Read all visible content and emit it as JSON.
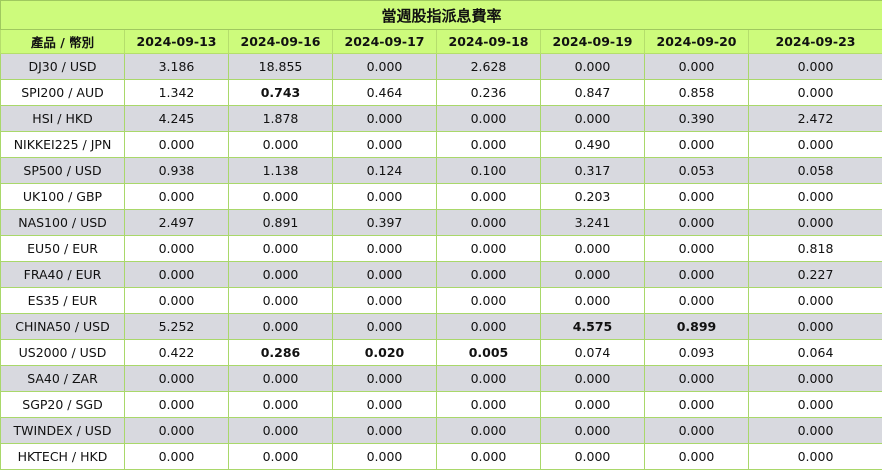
{
  "title": "當週股指派息費率",
  "header": {
    "product_label": "產品 / 幣別",
    "dates": [
      "2024-09-13",
      "2024-09-16",
      "2024-09-17",
      "2024-09-18",
      "2024-09-19",
      "2024-09-20",
      "2024-09-23"
    ]
  },
  "rows": [
    {
      "product": "DJ30 / USD",
      "values": [
        "3.186",
        "18.855",
        "0.000",
        "2.628",
        "0.000",
        "0.000",
        "0.000"
      ],
      "bold": []
    },
    {
      "product": "SPI200 / AUD",
      "values": [
        "1.342",
        "0.743",
        "0.464",
        "0.236",
        "0.847",
        "0.858",
        "0.000"
      ],
      "bold": [
        1
      ]
    },
    {
      "product": "HSI / HKD",
      "values": [
        "4.245",
        "1.878",
        "0.000",
        "0.000",
        "0.000",
        "0.390",
        "2.472"
      ],
      "bold": []
    },
    {
      "product": "NIKKEI225 / JPN",
      "values": [
        "0.000",
        "0.000",
        "0.000",
        "0.000",
        "0.490",
        "0.000",
        "0.000"
      ],
      "bold": []
    },
    {
      "product": "SP500 / USD",
      "values": [
        "0.938",
        "1.138",
        "0.124",
        "0.100",
        "0.317",
        "0.053",
        "0.058"
      ],
      "bold": []
    },
    {
      "product": "UK100 / GBP",
      "values": [
        "0.000",
        "0.000",
        "0.000",
        "0.000",
        "0.203",
        "0.000",
        "0.000"
      ],
      "bold": []
    },
    {
      "product": "NAS100 / USD",
      "values": [
        "2.497",
        "0.891",
        "0.397",
        "0.000",
        "3.241",
        "0.000",
        "0.000"
      ],
      "bold": []
    },
    {
      "product": "EU50 / EUR",
      "values": [
        "0.000",
        "0.000",
        "0.000",
        "0.000",
        "0.000",
        "0.000",
        "0.818"
      ],
      "bold": []
    },
    {
      "product": "FRA40 / EUR",
      "values": [
        "0.000",
        "0.000",
        "0.000",
        "0.000",
        "0.000",
        "0.000",
        "0.227"
      ],
      "bold": []
    },
    {
      "product": "ES35 / EUR",
      "values": [
        "0.000",
        "0.000",
        "0.000",
        "0.000",
        "0.000",
        "0.000",
        "0.000"
      ],
      "bold": []
    },
    {
      "product": "CHINA50 / USD",
      "values": [
        "5.252",
        "0.000",
        "0.000",
        "0.000",
        "4.575",
        "0.899",
        "0.000"
      ],
      "bold": [
        4,
        5
      ]
    },
    {
      "product": "US2000 / USD",
      "values": [
        "0.422",
        "0.286",
        "0.020",
        "0.005",
        "0.074",
        "0.093",
        "0.064"
      ],
      "bold": [
        1,
        2,
        3
      ]
    },
    {
      "product": "SA40 / ZAR",
      "values": [
        "0.000",
        "0.000",
        "0.000",
        "0.000",
        "0.000",
        "0.000",
        "0.000"
      ],
      "bold": []
    },
    {
      "product": "SGP20 / SGD",
      "values": [
        "0.000",
        "0.000",
        "0.000",
        "0.000",
        "0.000",
        "0.000",
        "0.000"
      ],
      "bold": []
    },
    {
      "product": "TWINDEX / USD",
      "values": [
        "0.000",
        "0.000",
        "0.000",
        "0.000",
        "0.000",
        "0.000",
        "0.000"
      ],
      "bold": []
    },
    {
      "product": "HKTECH / HKD",
      "values": [
        "0.000",
        "0.000",
        "0.000",
        "0.000",
        "0.000",
        "0.000",
        "0.000"
      ],
      "bold": []
    }
  ]
}
